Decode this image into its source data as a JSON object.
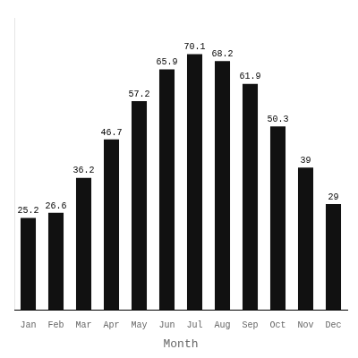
{
  "chart_data": {
    "type": "bar",
    "categories": [
      "Jan",
      "Feb",
      "Mar",
      "Apr",
      "May",
      "Jun",
      "Jul",
      "Aug",
      "Sep",
      "Oct",
      "Nov",
      "Dec"
    ],
    "values": [
      25.2,
      26.6,
      36.2,
      46.7,
      57.2,
      65.9,
      70.1,
      68.2,
      61.9,
      50.3,
      39.0,
      29.0
    ],
    "color": "#111111",
    "xlabel": "Month",
    "ylim": [
      0,
      80
    ],
    "grid": false,
    "data_labels": true,
    "tick_labels": "x"
  }
}
